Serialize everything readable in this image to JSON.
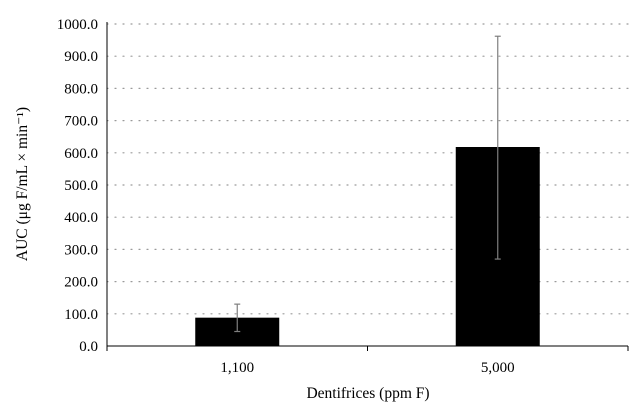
{
  "chart_data": {
    "type": "bar",
    "categories": [
      "1,100",
      "5,000"
    ],
    "series": [
      {
        "values": [
          88,
          618
        ],
        "error_low": [
          45,
          270
        ],
        "error_high": [
          130,
          962
        ]
      }
    ],
    "ylim": [
      0,
      1000
    ],
    "yticks": [
      0,
      100,
      200,
      300,
      400,
      500,
      600,
      700,
      800,
      900,
      1000
    ],
    "ytick_labels": [
      "0.0",
      "100.0",
      "200.0",
      "300.0",
      "400.0",
      "500.0",
      "600.0",
      "700.0",
      "800.0",
      "900.0",
      "1000.0"
    ],
    "xlabel": "Dentifrices (ppm F)",
    "ylabel": "AUC (μg F/mL × min⁻¹)",
    "grid": "horizontal-dotted",
    "legend": "none",
    "colors": {
      "bar": "#000000",
      "error_bar": "#7f7f7f",
      "grid": "#9a9a9a",
      "axis": "#000000"
    }
  }
}
